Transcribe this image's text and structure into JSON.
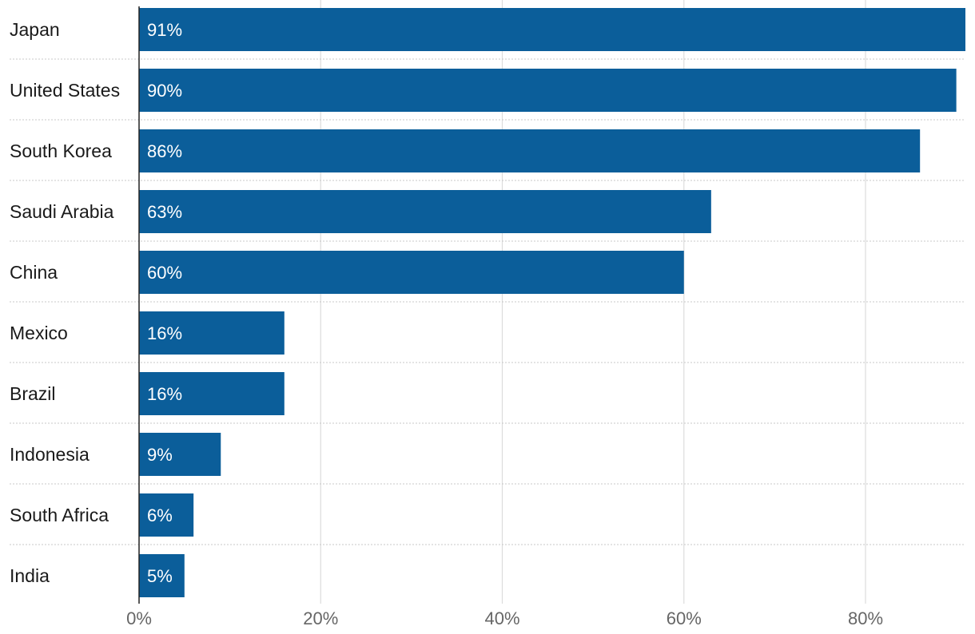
{
  "chart_data": {
    "type": "bar",
    "orientation": "horizontal",
    "categories": [
      "Japan",
      "United States",
      "South Korea",
      "Saudi Arabia",
      "China",
      "Mexico",
      "Brazil",
      "Indonesia",
      "South Africa",
      "India"
    ],
    "values": [
      91,
      90,
      86,
      63,
      60,
      16,
      16,
      9,
      6,
      5
    ],
    "value_labels": [
      "91%",
      "90%",
      "86%",
      "63%",
      "60%",
      "16%",
      "16%",
      "9%",
      "6%",
      "5%"
    ],
    "x_ticks": [
      0,
      20,
      40,
      60,
      80
    ],
    "x_tick_labels": [
      "0%",
      "20%",
      "40%",
      "60%",
      "80%"
    ],
    "xlim": [
      0,
      91
    ],
    "bar_color": "#0b5e9a",
    "grid": true,
    "title": "",
    "xlabel": "",
    "ylabel": ""
  }
}
